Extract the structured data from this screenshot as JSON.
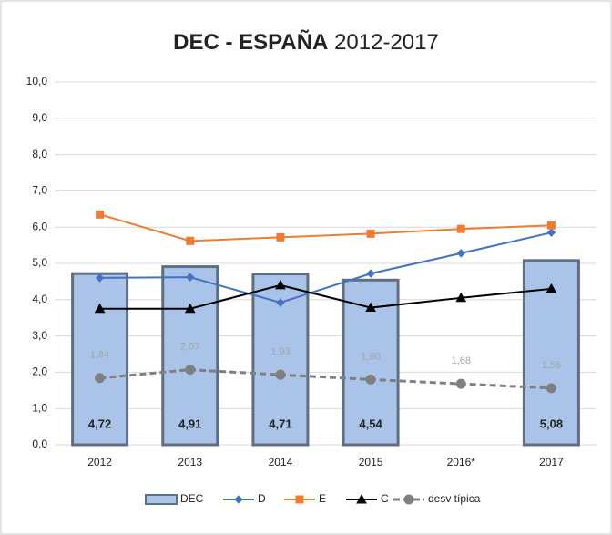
{
  "chart_data": {
    "type": "bar_line",
    "title": [
      "DEC - ESPAÑA",
      "2012-2017"
    ],
    "categories": [
      "2012",
      "2013",
      "2014",
      "2015",
      "2016*",
      "2017"
    ],
    "ylim": [
      0,
      10
    ],
    "yticks": [
      {
        "value": 0,
        "label": "0,0"
      },
      {
        "value": 1,
        "label": "1,0"
      },
      {
        "value": 2,
        "label": "2,0"
      },
      {
        "value": 3,
        "label": "3,0"
      },
      {
        "value": 4,
        "label": "4,0"
      },
      {
        "value": 5,
        "label": "5,0"
      },
      {
        "value": 6,
        "label": "6,0"
      },
      {
        "value": 7,
        "label": "7,0"
      },
      {
        "value": 8,
        "label": "8,0"
      },
      {
        "value": 9,
        "label": "9,0"
      },
      {
        "value": 10,
        "label": "10,0"
      }
    ],
    "grid": true,
    "series": [
      {
        "name": "DEC",
        "kind": "bar",
        "color": "#a9c4e8",
        "values": [
          4.72,
          4.91,
          4.71,
          4.54,
          null,
          5.08
        ],
        "value_labels": [
          "4,72",
          "4,91",
          "4,71",
          "4,54",
          null,
          "5,08"
        ]
      },
      {
        "name": "D",
        "kind": "line",
        "marker": "diamond",
        "color": "#4472c4",
        "values": [
          4.6,
          4.62,
          3.92,
          4.72,
          5.28,
          5.85
        ]
      },
      {
        "name": "E",
        "kind": "line",
        "marker": "square",
        "color": "#ed7d31",
        "values": [
          6.35,
          5.62,
          5.72,
          5.82,
          5.95,
          6.05
        ]
      },
      {
        "name": "C",
        "kind": "line",
        "marker": "triangle",
        "color": "#000000",
        "values": [
          3.75,
          3.75,
          4.4,
          3.78,
          4.05,
          4.3
        ]
      },
      {
        "name": "desv típica",
        "kind": "line",
        "marker": "circle",
        "dashed": true,
        "color": "#7f7f7f",
        "values": [
          1.84,
          2.07,
          1.93,
          1.8,
          1.68,
          1.56
        ],
        "value_labels": [
          "1,84",
          "2,07",
          "1,93",
          "1,80",
          "1,68",
          "1,56"
        ]
      }
    ]
  }
}
